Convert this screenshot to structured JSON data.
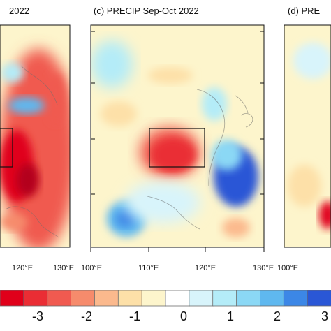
{
  "panels": {
    "left": {
      "title": "2022",
      "x_ticks": [
        "120°E",
        "130°E"
      ]
    },
    "center": {
      "title": "(c) PRECIP  Sep-Oct  2022",
      "x_ticks": [
        "100°E",
        "110°E",
        "120°E",
        "130°E"
      ]
    },
    "right": {
      "title": "(d)  PRE",
      "x_ticks": [
        "100°E"
      ]
    }
  },
  "colorbar": {
    "labels": [
      "-3",
      "-2",
      "-1",
      "0",
      "1",
      "2",
      "3"
    ],
    "colors": [
      "#e0001a",
      "#ea2d34",
      "#f05a50",
      "#f68b6c",
      "#fbb98d",
      "#fde0a8",
      "#fdf5cc",
      "#ffffff",
      "#d8f4fb",
      "#b4ecf8",
      "#8bd8f5",
      "#5fb8ef",
      "#3c87e6",
      "#2a57d6"
    ]
  },
  "map_colors": {
    "ocean_neutral": "#fdf5cc",
    "light_red": "#f68b6c",
    "medium_red": "#f05a50",
    "deep_red": "#e0001a",
    "very_deep_red": "#b3001a",
    "light_blue": "#b4ecf8",
    "medium_blue": "#5fb8ef",
    "deep_blue": "#2a57d6",
    "orange": "#fbb98d",
    "pale_orange": "#fde0a8"
  }
}
